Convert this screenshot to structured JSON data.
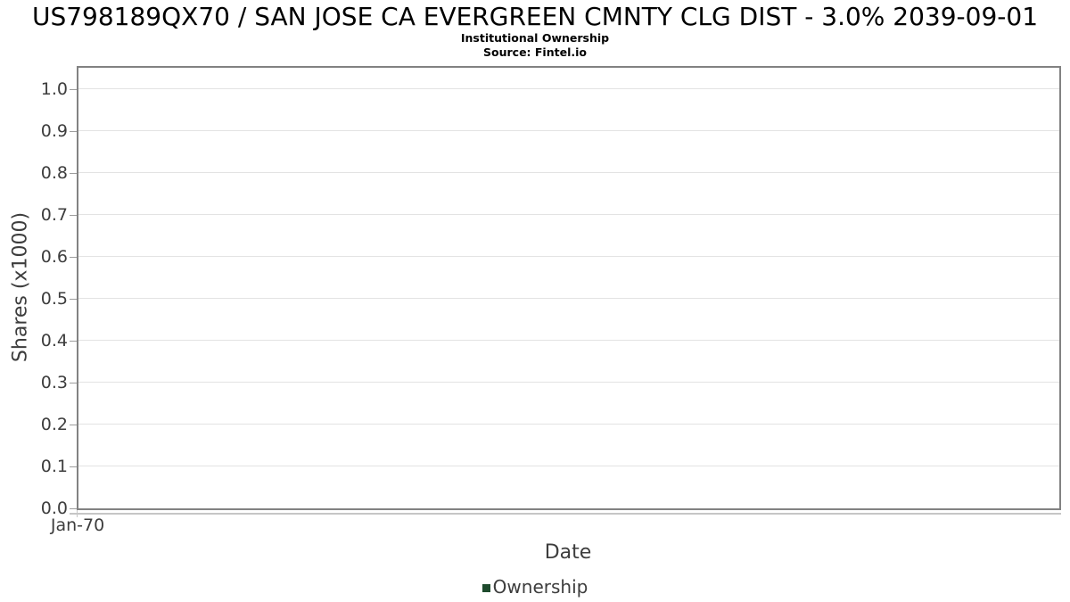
{
  "chart": {
    "title": "US798189QX70 / SAN JOSE CA EVERGREEN CMNTY CLG DIST - 3.0% 2039-09-01",
    "subtitle": "Institutional Ownership",
    "source": "Source: Fintel.io",
    "xlabel": "Date",
    "ylabel": "Shares (x1000)",
    "x_ticks": [
      "Jan-70"
    ],
    "y_ticks": [
      "0.0",
      "0.1",
      "0.2",
      "0.3",
      "0.4",
      "0.5",
      "0.6",
      "0.7",
      "0.8",
      "0.9",
      "1.0"
    ],
    "legend": [
      {
        "label": "Ownership",
        "color": "#1e4b2d"
      }
    ],
    "colors": {
      "title_text": "#000000",
      "axis_text": "#3d3d3d",
      "plot_border": "#828282",
      "gridline": "#e3e3e3",
      "tick_mark": "#9d9d9d",
      "sub_axis_line": "#c6c6c6",
      "series_ownership": "#1e4b2d"
    }
  },
  "chart_data": {
    "type": "line",
    "title": "US798189QX70 / SAN JOSE CA EVERGREEN CMNTY CLG DIST - 3.0% 2039-09-01",
    "subtitle": "Institutional Ownership",
    "source": "Source: Fintel.io",
    "xlabel": "Date",
    "ylabel": "Shares (x1000)",
    "x_tick_labels": [
      "Jan-70"
    ],
    "ylim": [
      0.0,
      1.0
    ],
    "y_tick_interval": 0.1,
    "grid": true,
    "legend_position": "bottom",
    "series": [
      {
        "name": "Ownership",
        "color": "#1e4b2d",
        "x": [],
        "values": []
      }
    ]
  }
}
